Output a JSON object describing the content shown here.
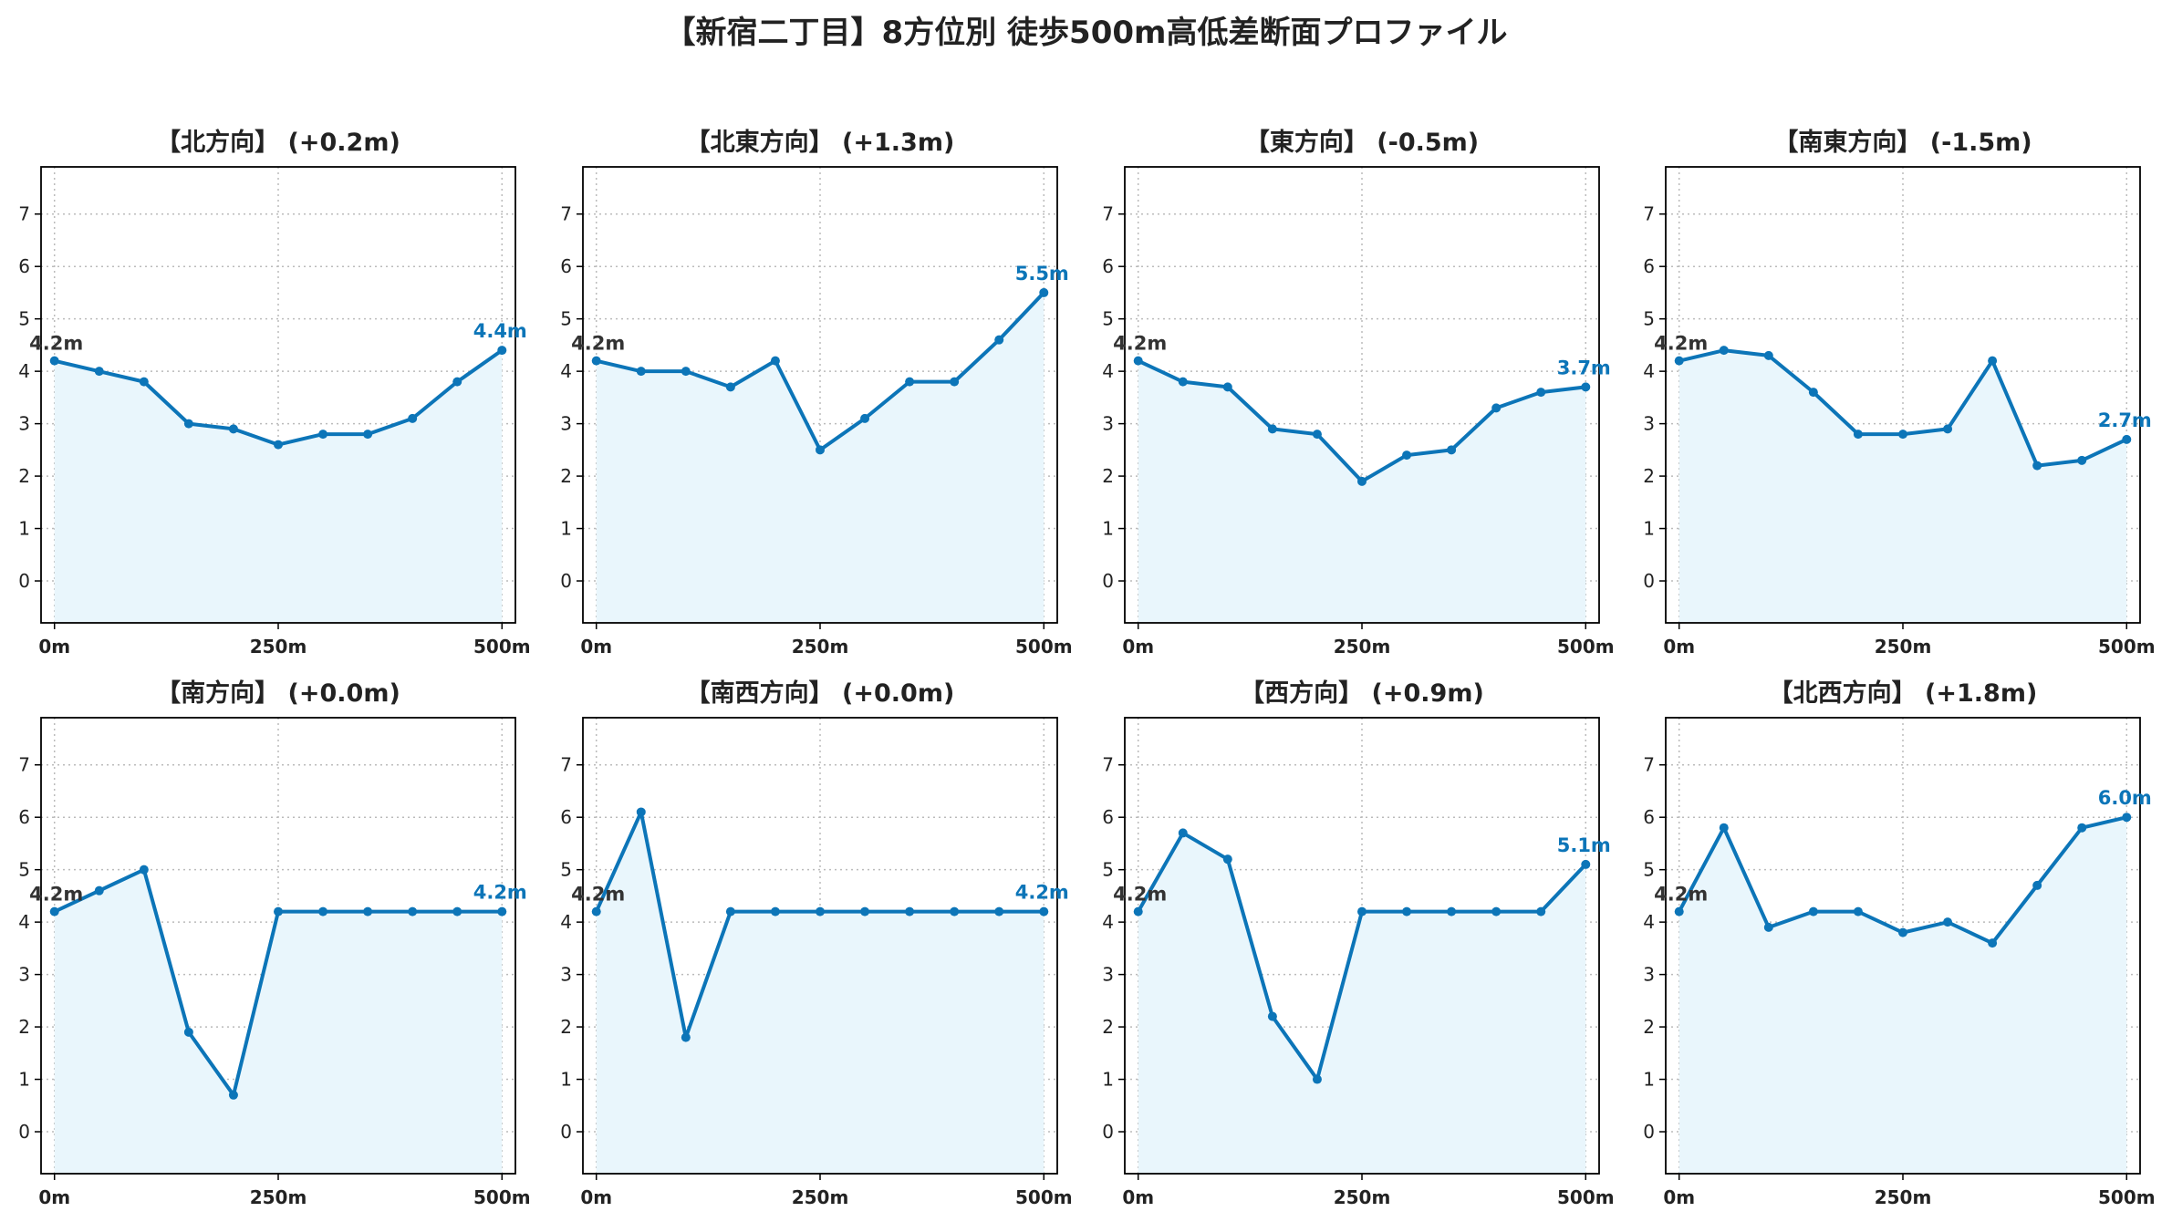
{
  "title": "【新宿二丁目】8方位別 徒歩500m高低差断面プロファイル",
  "colors": {
    "line": "#0c75b8",
    "fill": "#e9f6fc",
    "axis": "#000000",
    "grid": "#bbbbbb",
    "start_label": "#333333"
  },
  "chart_data": [
    {
      "type": "area",
      "title": "【北方向】 (+0.2m)",
      "x": [
        0,
        50,
        100,
        150,
        200,
        250,
        300,
        350,
        400,
        450,
        500
      ],
      "values": [
        4.2,
        4.0,
        3.8,
        3.0,
        2.9,
        2.6,
        2.8,
        2.8,
        3.1,
        3.8,
        4.4
      ],
      "start_label": "4.2m",
      "end_label": "4.4m",
      "xticks": [
        "0m",
        "250m",
        "500m"
      ],
      "yticks": [
        "0",
        "1",
        "2",
        "3",
        "4",
        "5",
        "6",
        "7"
      ],
      "ylim": [
        -0.8,
        7.9
      ],
      "xlim": [
        -15,
        515
      ],
      "grid": true
    },
    {
      "type": "area",
      "title": "【北東方向】 (+1.3m)",
      "x": [
        0,
        50,
        100,
        150,
        200,
        250,
        300,
        350,
        400,
        450,
        500
      ],
      "values": [
        4.2,
        4.0,
        4.0,
        3.7,
        4.2,
        2.5,
        3.1,
        3.8,
        3.8,
        4.6,
        5.5
      ],
      "start_label": "4.2m",
      "end_label": "5.5m",
      "xticks": [
        "0m",
        "250m",
        "500m"
      ],
      "yticks": [
        "0",
        "1",
        "2",
        "3",
        "4",
        "5",
        "6",
        "7"
      ],
      "ylim": [
        -0.8,
        7.9
      ],
      "xlim": [
        -15,
        515
      ],
      "grid": true
    },
    {
      "type": "area",
      "title": "【東方向】 (-0.5m)",
      "x": [
        0,
        50,
        100,
        150,
        200,
        250,
        300,
        350,
        400,
        450,
        500
      ],
      "values": [
        4.2,
        3.8,
        3.7,
        2.9,
        2.8,
        1.9,
        2.4,
        2.5,
        3.3,
        3.6,
        3.7
      ],
      "start_label": "4.2m",
      "end_label": "3.7m",
      "xticks": [
        "0m",
        "250m",
        "500m"
      ],
      "yticks": [
        "0",
        "1",
        "2",
        "3",
        "4",
        "5",
        "6",
        "7"
      ],
      "ylim": [
        -0.8,
        7.9
      ],
      "xlim": [
        -15,
        515
      ],
      "grid": true
    },
    {
      "type": "area",
      "title": "【南東方向】 (-1.5m)",
      "x": [
        0,
        50,
        100,
        150,
        200,
        250,
        300,
        350,
        400,
        450,
        500
      ],
      "values": [
        4.2,
        4.4,
        4.3,
        3.6,
        2.8,
        2.8,
        2.9,
        4.2,
        2.2,
        2.3,
        2.7
      ],
      "start_label": "4.2m",
      "end_label": "2.7m",
      "xticks": [
        "0m",
        "250m",
        "500m"
      ],
      "yticks": [
        "0",
        "1",
        "2",
        "3",
        "4",
        "5",
        "6",
        "7"
      ],
      "ylim": [
        -0.8,
        7.9
      ],
      "xlim": [
        -15,
        515
      ],
      "grid": true
    },
    {
      "type": "area",
      "title": "【南方向】 (+0.0m)",
      "x": [
        0,
        50,
        100,
        150,
        200,
        250,
        300,
        350,
        400,
        450,
        500
      ],
      "values": [
        4.2,
        4.6,
        5.0,
        1.9,
        0.7,
        4.2,
        4.2,
        4.2,
        4.2,
        4.2,
        4.2
      ],
      "start_label": "4.2m",
      "end_label": "4.2m",
      "xticks": [
        "0m",
        "250m",
        "500m"
      ],
      "yticks": [
        "0",
        "1",
        "2",
        "3",
        "4",
        "5",
        "6",
        "7"
      ],
      "ylim": [
        -0.8,
        7.9
      ],
      "xlim": [
        -15,
        515
      ],
      "grid": true
    },
    {
      "type": "area",
      "title": "【南西方向】 (+0.0m)",
      "x": [
        0,
        50,
        100,
        150,
        200,
        250,
        300,
        350,
        400,
        450,
        500
      ],
      "values": [
        4.2,
        6.1,
        1.8,
        4.2,
        4.2,
        4.2,
        4.2,
        4.2,
        4.2,
        4.2,
        4.2
      ],
      "start_label": "4.2m",
      "end_label": "4.2m",
      "xticks": [
        "0m",
        "250m",
        "500m"
      ],
      "yticks": [
        "0",
        "1",
        "2",
        "3",
        "4",
        "5",
        "6",
        "7"
      ],
      "ylim": [
        -0.8,
        7.9
      ],
      "xlim": [
        -15,
        515
      ],
      "grid": true
    },
    {
      "type": "area",
      "title": "【西方向】 (+0.9m)",
      "x": [
        0,
        50,
        100,
        150,
        200,
        250,
        300,
        350,
        400,
        450,
        500
      ],
      "values": [
        4.2,
        5.7,
        5.2,
        2.2,
        1.0,
        4.2,
        4.2,
        4.2,
        4.2,
        4.2,
        5.1
      ],
      "start_label": "4.2m",
      "end_label": "5.1m",
      "xticks": [
        "0m",
        "250m",
        "500m"
      ],
      "yticks": [
        "0",
        "1",
        "2",
        "3",
        "4",
        "5",
        "6",
        "7"
      ],
      "ylim": [
        -0.8,
        7.9
      ],
      "xlim": [
        -15,
        515
      ],
      "grid": true
    },
    {
      "type": "area",
      "title": "【北西方向】 (+1.8m)",
      "x": [
        0,
        50,
        100,
        150,
        200,
        250,
        300,
        350,
        400,
        450,
        500
      ],
      "values": [
        4.2,
        5.8,
        3.9,
        4.2,
        4.2,
        3.8,
        4.0,
        3.6,
        4.7,
        5.8,
        6.0
      ],
      "start_label": "4.2m",
      "end_label": "6.0m",
      "xticks": [
        "0m",
        "250m",
        "500m"
      ],
      "yticks": [
        "0",
        "1",
        "2",
        "3",
        "4",
        "5",
        "6",
        "7"
      ],
      "ylim": [
        -0.8,
        7.9
      ],
      "xlim": [
        -15,
        515
      ],
      "grid": true
    }
  ]
}
